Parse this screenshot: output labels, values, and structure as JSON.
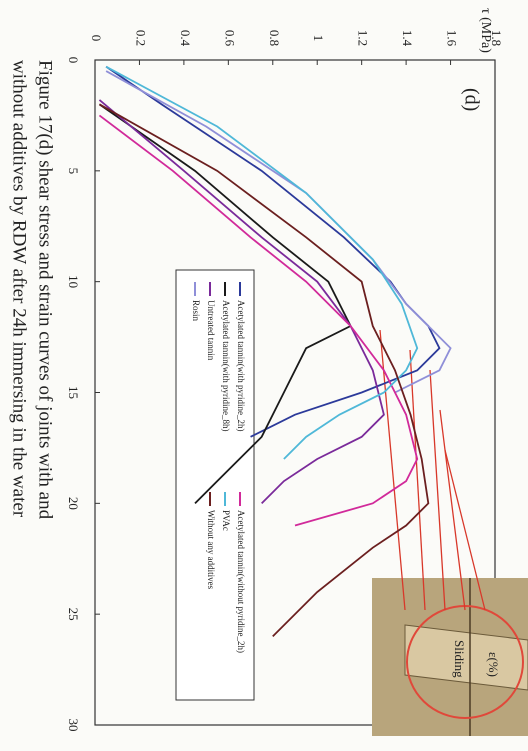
{
  "chart_data": {
    "type": "line",
    "caption": [
      "Figure 17(d) shear stress and strain curves of joints with and",
      "without additives by RDW after 24h immersing in the water"
    ],
    "panel_label": "(d)",
    "inset_label": "Sliding",
    "x_label": "ε(%)",
    "y_label": "τ (MPa)",
    "xlim": [
      0,
      30
    ],
    "xticks": [
      0,
      5,
      10,
      15,
      20,
      25,
      30
    ],
    "ylim": [
      0,
      1.8
    ],
    "yticks": [
      0,
      0.2,
      0.4,
      0.6,
      0.8,
      1,
      1.2,
      1.4,
      1.6,
      1.8
    ],
    "series": [
      {
        "name": "Acetylated tannin(with pyridine_2h)",
        "color": "#2c3a9a",
        "x": [
          0.3,
          2,
          5,
          8,
          10,
          11,
          12,
          13,
          14,
          15,
          16,
          17
        ],
        "values": [
          0.05,
          0.3,
          0.75,
          1.12,
          1.33,
          1.4,
          1.5,
          1.55,
          1.45,
          1.2,
          0.9,
          0.7
        ]
      },
      {
        "name": "Acetylated tannin(with pyridine_8h)",
        "color": "#1a1a1a",
        "x": [
          2,
          5,
          8,
          10,
          12,
          13,
          15,
          17,
          19,
          20
        ],
        "values": [
          0.02,
          0.45,
          0.8,
          1.05,
          1.15,
          0.95,
          0.85,
          0.75,
          0.55,
          0.45
        ]
      },
      {
        "name": "Untreated tannin",
        "color": "#7a2a9a",
        "x": [
          1.8,
          5,
          8,
          10,
          12,
          14,
          16,
          17,
          18,
          19,
          20
        ],
        "values": [
          0.02,
          0.4,
          0.75,
          1.0,
          1.15,
          1.25,
          1.3,
          1.2,
          1.0,
          0.85,
          0.75
        ]
      },
      {
        "name": "Rosin",
        "color": "#8f8fd8",
        "x": [
          0.5,
          3,
          6,
          9,
          11,
          12,
          13,
          14,
          15
        ],
        "values": [
          0.05,
          0.5,
          0.95,
          1.25,
          1.4,
          1.5,
          1.6,
          1.55,
          1.35
        ]
      },
      {
        "name": "Acetylated tannin(without pyridine_2h)",
        "color": "#d12a9a",
        "x": [
          2.5,
          5,
          8,
          10,
          12,
          14,
          16,
          18,
          19,
          20,
          21
        ],
        "values": [
          0.02,
          0.35,
          0.7,
          0.95,
          1.15,
          1.3,
          1.4,
          1.45,
          1.4,
          1.25,
          0.9
        ]
      },
      {
        "name": "PVAc",
        "color": "#4fb8d8",
        "x": [
          0.3,
          3,
          6,
          9,
          11,
          13,
          14,
          15,
          16,
          17,
          18
        ],
        "values": [
          0.05,
          0.55,
          0.95,
          1.25,
          1.38,
          1.45,
          1.4,
          1.3,
          1.1,
          0.95,
          0.85
        ]
      },
      {
        "name": "Without any additives",
        "color": "#6b1f1f",
        "x": [
          2,
          5,
          8,
          10,
          12,
          14,
          16,
          18,
          20,
          21,
          22,
          24,
          26
        ],
        "values": [
          0.02,
          0.55,
          0.95,
          1.2,
          1.25,
          1.35,
          1.42,
          1.47,
          1.5,
          1.4,
          1.25,
          1.0,
          0.8
        ]
      }
    ]
  }
}
